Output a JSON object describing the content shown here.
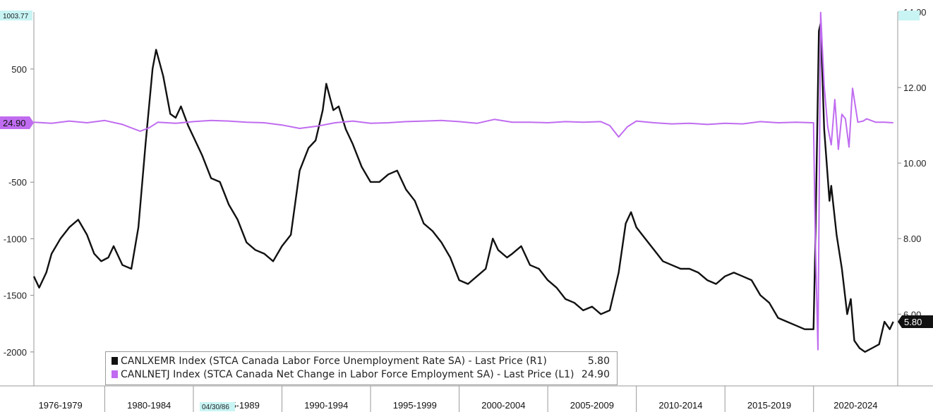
{
  "chart_data": {
    "type": "line",
    "x_categories": [
      "1976-1979",
      "1980-1984",
      "1985-1989",
      "1990-1994",
      "1995-1999",
      "2000-2004",
      "2005-2009",
      "2010-2014",
      "2015-2019",
      "2020-2024"
    ],
    "left_axis": {
      "ticks": [
        500,
        -500,
        -1000,
        -1500,
        -2000
      ],
      "ylim": [
        -2300,
        1003.77
      ],
      "top_tag": "1003.77"
    },
    "right_axis": {
      "ticks": [
        "14.00",
        "12.00",
        "10.00",
        "8.00",
        "6.00"
      ],
      "ylim": [
        4.1,
        14.0
      ]
    },
    "date_tag": "04/30/86",
    "series": [
      {
        "name": "CANLXEMR Index (STCA Canada Labor Force Unemployment Rate SA) - Last Price (R1)",
        "axis": "right",
        "color": "#111111",
        "last": "5.80",
        "points": [
          [
            1976.0,
            7.0
          ],
          [
            1976.3,
            6.7
          ],
          [
            1976.7,
            7.1
          ],
          [
            1977.0,
            7.6
          ],
          [
            1977.5,
            8.0
          ],
          [
            1978.0,
            8.3
          ],
          [
            1978.5,
            8.5
          ],
          [
            1979.0,
            8.1
          ],
          [
            1979.4,
            7.6
          ],
          [
            1979.8,
            7.4
          ],
          [
            1980.2,
            7.5
          ],
          [
            1980.5,
            7.8
          ],
          [
            1981.0,
            7.3
          ],
          [
            1981.5,
            7.2
          ],
          [
            1981.9,
            8.3
          ],
          [
            1982.3,
            10.5
          ],
          [
            1982.7,
            12.5
          ],
          [
            1982.9,
            13.0
          ],
          [
            1983.3,
            12.3
          ],
          [
            1983.7,
            11.3
          ],
          [
            1984.0,
            11.2
          ],
          [
            1984.3,
            11.5
          ],
          [
            1984.7,
            11.0
          ],
          [
            1985.0,
            10.7
          ],
          [
            1985.5,
            10.2
          ],
          [
            1986.0,
            9.6
          ],
          [
            1986.5,
            9.5
          ],
          [
            1987.0,
            8.9
          ],
          [
            1987.5,
            8.5
          ],
          [
            1988.0,
            7.9
          ],
          [
            1988.5,
            7.7
          ],
          [
            1989.0,
            7.6
          ],
          [
            1989.5,
            7.4
          ],
          [
            1990.0,
            7.8
          ],
          [
            1990.5,
            8.1
          ],
          [
            1991.0,
            9.8
          ],
          [
            1991.5,
            10.4
          ],
          [
            1991.9,
            10.6
          ],
          [
            1992.3,
            11.4
          ],
          [
            1992.5,
            12.1
          ],
          [
            1992.9,
            11.4
          ],
          [
            1993.2,
            11.5
          ],
          [
            1993.6,
            10.9
          ],
          [
            1994.0,
            10.5
          ],
          [
            1994.5,
            9.9
          ],
          [
            1995.0,
            9.5
          ],
          [
            1995.5,
            9.5
          ],
          [
            1996.0,
            9.7
          ],
          [
            1996.5,
            9.8
          ],
          [
            1997.0,
            9.3
          ],
          [
            1997.5,
            9.0
          ],
          [
            1998.0,
            8.4
          ],
          [
            1998.5,
            8.2
          ],
          [
            1999.0,
            7.9
          ],
          [
            1999.5,
            7.5
          ],
          [
            2000.0,
            6.9
          ],
          [
            2000.5,
            6.8
          ],
          [
            2001.0,
            7.0
          ],
          [
            2001.5,
            7.2
          ],
          [
            2001.9,
            8.0
          ],
          [
            2002.2,
            7.7
          ],
          [
            2002.7,
            7.5
          ],
          [
            2003.0,
            7.6
          ],
          [
            2003.5,
            7.8
          ],
          [
            2004.0,
            7.3
          ],
          [
            2004.5,
            7.2
          ],
          [
            2005.0,
            6.9
          ],
          [
            2005.5,
            6.7
          ],
          [
            2006.0,
            6.4
          ],
          [
            2006.5,
            6.3
          ],
          [
            2007.0,
            6.1
          ],
          [
            2007.5,
            6.2
          ],
          [
            2008.0,
            6.0
          ],
          [
            2008.5,
            6.1
          ],
          [
            2009.0,
            7.1
          ],
          [
            2009.4,
            8.4
          ],
          [
            2009.7,
            8.7
          ],
          [
            2010.0,
            8.3
          ],
          [
            2010.5,
            8.0
          ],
          [
            2011.0,
            7.7
          ],
          [
            2011.5,
            7.4
          ],
          [
            2012.0,
            7.3
          ],
          [
            2012.5,
            7.2
          ],
          [
            2013.0,
            7.2
          ],
          [
            2013.5,
            7.1
          ],
          [
            2014.0,
            6.9
          ],
          [
            2014.5,
            6.8
          ],
          [
            2015.0,
            7.0
          ],
          [
            2015.5,
            7.1
          ],
          [
            2016.0,
            7.0
          ],
          [
            2016.5,
            6.9
          ],
          [
            2017.0,
            6.5
          ],
          [
            2017.5,
            6.3
          ],
          [
            2018.0,
            5.9
          ],
          [
            2018.5,
            5.8
          ],
          [
            2019.0,
            5.7
          ],
          [
            2019.5,
            5.6
          ],
          [
            2020.0,
            5.6
          ],
          [
            2020.1,
            7.8
          ],
          [
            2020.3,
            13.5
          ],
          [
            2020.4,
            13.7
          ],
          [
            2020.6,
            10.9
          ],
          [
            2020.9,
            9.0
          ],
          [
            2021.0,
            9.4
          ],
          [
            2021.3,
            8.1
          ],
          [
            2021.6,
            7.2
          ],
          [
            2021.9,
            6.0
          ],
          [
            2022.1,
            6.4
          ],
          [
            2022.3,
            5.3
          ],
          [
            2022.6,
            5.1
          ],
          [
            2022.9,
            5.0
          ],
          [
            2023.3,
            5.1
          ],
          [
            2023.7,
            5.2
          ],
          [
            2024.0,
            5.8
          ],
          [
            2024.3,
            5.6
          ],
          [
            2024.5,
            5.8
          ]
        ]
      },
      {
        "name": "CANLNETJ Index (STCA Canada Net Change in Labor Force Employment SA) - Last Price (L1)",
        "axis": "left",
        "color": "#c06cf0",
        "last": "24.90",
        "points": [
          [
            1976.0,
            30
          ],
          [
            1977.0,
            20
          ],
          [
            1978.0,
            40
          ],
          [
            1979.0,
            25
          ],
          [
            1980.0,
            45
          ],
          [
            1981.0,
            10
          ],
          [
            1982.0,
            -50
          ],
          [
            1982.5,
            -20
          ],
          [
            1983.0,
            30
          ],
          [
            1984.0,
            20
          ],
          [
            1985.0,
            35
          ],
          [
            1986.0,
            45
          ],
          [
            1987.0,
            40
          ],
          [
            1988.0,
            30
          ],
          [
            1989.0,
            25
          ],
          [
            1990.0,
            5
          ],
          [
            1991.0,
            -25
          ],
          [
            1992.0,
            -5
          ],
          [
            1993.0,
            25
          ],
          [
            1994.0,
            40
          ],
          [
            1995.0,
            20
          ],
          [
            1996.0,
            25
          ],
          [
            1997.0,
            35
          ],
          [
            1998.0,
            40
          ],
          [
            1999.0,
            45
          ],
          [
            2000.0,
            35
          ],
          [
            2001.0,
            20
          ],
          [
            2002.0,
            55
          ],
          [
            2003.0,
            30
          ],
          [
            2004.0,
            30
          ],
          [
            2005.0,
            25
          ],
          [
            2006.0,
            35
          ],
          [
            2007.0,
            30
          ],
          [
            2008.0,
            35
          ],
          [
            2008.5,
            0
          ],
          [
            2009.0,
            -100
          ],
          [
            2009.5,
            -10
          ],
          [
            2010.0,
            40
          ],
          [
            2011.0,
            25
          ],
          [
            2012.0,
            15
          ],
          [
            2013.0,
            20
          ],
          [
            2014.0,
            10
          ],
          [
            2015.0,
            20
          ],
          [
            2016.0,
            15
          ],
          [
            2017.0,
            35
          ],
          [
            2018.0,
            25
          ],
          [
            2019.0,
            30
          ],
          [
            2020.0,
            25
          ],
          [
            2020.1,
            -1000
          ],
          [
            2020.25,
            -1980
          ],
          [
            2020.4,
            1000
          ],
          [
            2020.6,
            350
          ],
          [
            2020.8,
            -10
          ],
          [
            2021.0,
            -170
          ],
          [
            2021.2,
            230
          ],
          [
            2021.4,
            -210
          ],
          [
            2021.6,
            100
          ],
          [
            2021.8,
            60
          ],
          [
            2022.0,
            -190
          ],
          [
            2022.2,
            330
          ],
          [
            2022.5,
            30
          ],
          [
            2022.8,
            40
          ],
          [
            2023.0,
            60
          ],
          [
            2023.5,
            30
          ],
          [
            2024.0,
            30
          ],
          [
            2024.5,
            24.9
          ]
        ]
      }
    ]
  }
}
